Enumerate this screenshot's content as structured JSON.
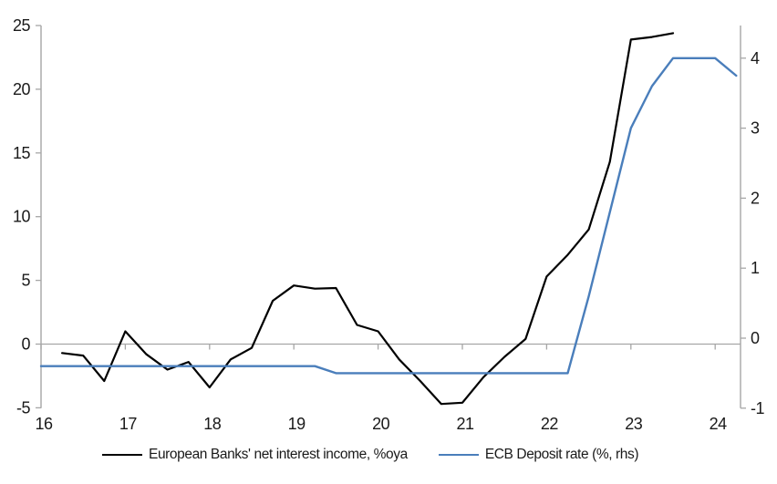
{
  "chart_data": {
    "type": "line",
    "title": "",
    "x_ticks": [
      16,
      17,
      18,
      19,
      20,
      21,
      22,
      23,
      24
    ],
    "x_range": [
      16,
      24.3
    ],
    "left_axis": {
      "ticks": [
        25,
        20,
        15,
        10,
        5,
        0,
        -5
      ],
      "range": [
        -5,
        25
      ]
    },
    "right_axis": {
      "ticks": [
        4,
        3,
        2,
        1,
        0,
        -1
      ],
      "range": [
        -1,
        4.45
      ]
    },
    "grid": "zero-line-only",
    "legend_position": "bottom",
    "series": [
      {
        "name": "European Banks' net interest income, %oya",
        "axis": "left",
        "color": "#000000",
        "x": [
          16.25,
          16.5,
          16.75,
          17.0,
          17.25,
          17.5,
          17.75,
          18.0,
          18.25,
          18.5,
          18.75,
          19.0,
          19.25,
          19.5,
          19.75,
          20.0,
          20.25,
          20.5,
          20.75,
          21.0,
          21.25,
          21.5,
          21.75,
          22.0,
          22.25,
          22.5,
          22.75,
          23.0,
          23.25,
          23.5
        ],
        "values": [
          -0.7,
          -0.9,
          -2.9,
          1.0,
          -0.8,
          -2.0,
          -1.4,
          -3.4,
          -1.2,
          -0.3,
          3.4,
          4.6,
          4.35,
          4.4,
          1.5,
          1.0,
          -1.2,
          -2.9,
          -4.7,
          -4.6,
          -2.6,
          -1.0,
          0.4,
          5.3,
          7.0,
          9.0,
          14.3,
          23.9,
          24.1,
          24.4
        ]
      },
      {
        "name": "ECB Deposit rate (%, rhs)",
        "axis": "right",
        "color": "#4A7EBB",
        "x": [
          16.0,
          16.25,
          16.5,
          16.75,
          17.0,
          17.25,
          17.5,
          17.75,
          18.0,
          18.25,
          18.5,
          18.75,
          19.0,
          19.25,
          19.5,
          19.75,
          20.0,
          20.25,
          20.5,
          20.75,
          21.0,
          21.25,
          21.5,
          21.75,
          22.0,
          22.25,
          22.5,
          22.75,
          23.0,
          23.25,
          23.5,
          23.75,
          24.0,
          24.25
        ],
        "values": [
          -0.4,
          -0.4,
          -0.4,
          -0.4,
          -0.4,
          -0.4,
          -0.4,
          -0.4,
          -0.4,
          -0.4,
          -0.4,
          -0.4,
          -0.4,
          -0.4,
          -0.5,
          -0.5,
          -0.5,
          -0.5,
          -0.5,
          -0.5,
          -0.5,
          -0.5,
          -0.5,
          -0.5,
          -0.5,
          -0.5,
          0.6,
          1.8,
          3.0,
          3.6,
          4.0,
          4.0,
          4.0,
          3.75
        ]
      }
    ]
  },
  "colors": {
    "background": "#ffffff",
    "axis_line": "#a6a6a6",
    "zero_line": "#a6a6a6",
    "tick_text": "#1a1a1a",
    "nii_line": "#000000",
    "ecb_line": "#4A7EBB"
  }
}
